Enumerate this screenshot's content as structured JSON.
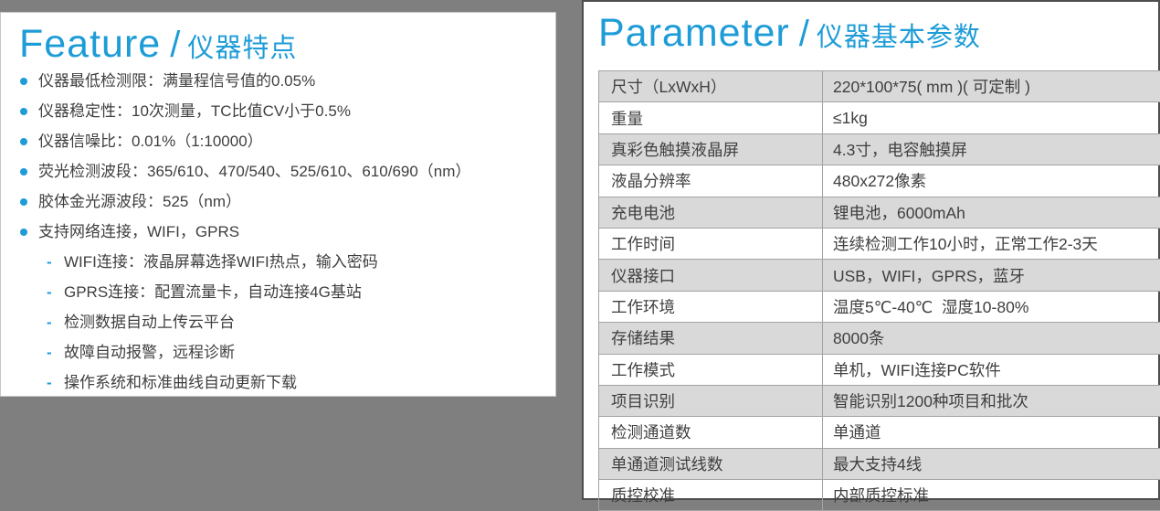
{
  "colors": {
    "page_bg": "#7F7F7F",
    "accent_blue": "#1E9CD7",
    "body_text": "#3F3F3F",
    "table_border": "#A3A3A3",
    "row_alt_bg": "#D9D9D9",
    "panel_border_dark": "#4D4D4D",
    "panel_border_light": "#C6C6C6"
  },
  "feature": {
    "title_en": "Feature",
    "title_separator": "/",
    "title_zh": "仪器特点",
    "items": [
      {
        "level": 1,
        "text": "仪器最低检测限：满量程信号值的0.05%"
      },
      {
        "level": 1,
        "text": "仪器稳定性：10次测量，TC比值CV小于0.5%"
      },
      {
        "level": 1,
        "text": "仪器信噪比：0.01%（1:10000）"
      },
      {
        "level": 1,
        "text": "荧光检测波段：365/610、470/540、525/610、610/690（nm）"
      },
      {
        "level": 1,
        "text": "胶体金光源波段：525（nm）"
      },
      {
        "level": 1,
        "text": "支持网络连接，WIFI，GPRS"
      },
      {
        "level": 2,
        "text": "WIFI连接：液晶屏幕选择WIFI热点，输入密码"
      },
      {
        "level": 2,
        "text": "GPRS连接：配置流量卡，自动连接4G基站"
      },
      {
        "level": 2,
        "text": "检测数据自动上传云平台"
      },
      {
        "level": 2,
        "text": "故障自动报警，远程诊断"
      },
      {
        "level": 2,
        "text": "操作系统和标准曲线自动更新下载"
      }
    ]
  },
  "parameter": {
    "title_en": "Parameter",
    "title_separator": "/",
    "title_zh": "仪器基本参数",
    "rows": [
      {
        "label": "尺寸（LxWxH）",
        "value": "220*100*75( mm )( 可定制 )"
      },
      {
        "label": "重量",
        "value": "≤1kg"
      },
      {
        "label": "真彩色触摸液晶屏",
        "value": "4.3寸，电容触摸屏"
      },
      {
        "label": "液晶分辨率",
        "value": "480x272像素"
      },
      {
        "label": "充电电池",
        "value": "锂电池，6000mAh"
      },
      {
        "label": "工作时间",
        "value": "连续检测工作10小时，正常工作2-3天"
      },
      {
        "label": "仪器接口",
        "value": "USB，WIFI，GPRS，蓝牙"
      },
      {
        "label": "工作环境",
        "value": "温度5℃-40℃  湿度10-80%"
      },
      {
        "label": "存储结果",
        "value": "8000条"
      },
      {
        "label": "工作模式",
        "value": "单机，WIFI连接PC软件"
      },
      {
        "label": "项目识别",
        "value": "智能识别1200种项目和批次"
      },
      {
        "label": "检测通道数",
        "value": "单通道"
      },
      {
        "label": "单通道测试线数",
        "value": "最大支持4线"
      },
      {
        "label": "质控校准",
        "value": "内部质控标准"
      }
    ]
  }
}
